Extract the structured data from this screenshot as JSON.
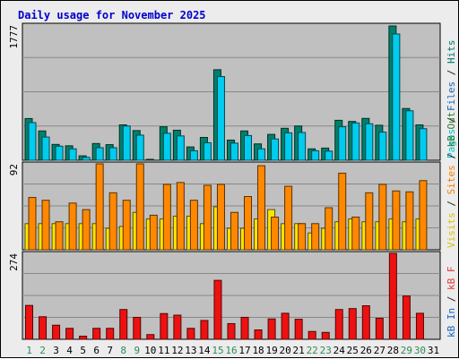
{
  "chart_data": {
    "type": "bar",
    "title": "Daily usage for November 2025",
    "categories": [
      "1",
      "2",
      "3",
      "4",
      "5",
      "6",
      "7",
      "8",
      "9",
      "10",
      "11",
      "12",
      "13",
      "14",
      "15",
      "16",
      "17",
      "18",
      "19",
      "20",
      "21",
      "22",
      "23",
      "24",
      "25",
      "26",
      "27",
      "28",
      "29",
      "30",
      "31"
    ],
    "weekend_days": [
      "1",
      "2",
      "8",
      "9",
      "15",
      "16",
      "22",
      "23",
      "29",
      "30"
    ],
    "panels": [
      {
        "id": "pages-files-hits",
        "max_label": "1777",
        "ymax": 1777,
        "side_labels": [
          {
            "text": "Pages",
            "color": "#00bcd4"
          },
          {
            "text": " / ",
            "color": "#222222"
          },
          {
            "text": "Files",
            "color": "#1565c0"
          },
          {
            "text": " / ",
            "color": "#222222"
          },
          {
            "text": "Hits",
            "color": "#00796b"
          }
        ],
        "series": [
          {
            "key": "hits",
            "color": "#00806a",
            "values": [
              548,
              385,
              208,
              190,
              58,
              220,
              205,
              465,
              390,
              8,
              440,
              395,
              175,
              300,
              1190,
              265,
              385,
              215,
              340,
              420,
              450,
              150,
              160,
              525,
              510,
              550,
              460,
              1765,
              680,
              465,
              0
            ]
          },
          {
            "key": "files",
            "color": "#00ccee",
            "values": [
              495,
              305,
              185,
              150,
              38,
              165,
              165,
              450,
              330,
              0,
              355,
              320,
              125,
              230,
              1100,
              225,
              325,
              150,
              280,
              360,
              365,
              125,
              120,
              440,
              490,
              480,
              370,
              1660,
              650,
              415,
              0
            ]
          }
        ]
      },
      {
        "id": "visits-sites-kb",
        "max_label": "92",
        "ymax": 92,
        "side_labels": [
          {
            "text": "Visits",
            "color": "#d9c400"
          },
          {
            "text": " / ",
            "color": "#222222"
          },
          {
            "text": "Sites",
            "color": "#f57c00"
          },
          {
            "text": " / ",
            "color": "#222222"
          },
          {
            "text": "kB Out",
            "color": "#2e7d32"
          }
        ],
        "series": [
          {
            "key": "visits",
            "color": "#ffe400",
            "values": [
              28,
              28,
              28,
              28,
              28,
              28,
              23,
              25,
              40,
              33,
              33,
              36,
              36,
              28,
              46,
              23,
              23,
              33,
              43,
              28,
              28,
              18,
              23,
              30,
              33,
              30,
              30,
              33,
              30,
              33,
              0
            ]
          },
          {
            "key": "sites",
            "color": "#ff8800",
            "values": [
              56,
              53,
              30,
              50,
              43,
              92,
              61,
              53,
              92,
              37,
              70,
              72,
              53,
              69,
              70,
              40,
              57,
              90,
              35,
              68,
              28,
              28,
              45,
              82,
              35,
              61,
              70,
              63,
              62,
              74,
              0
            ]
          }
        ]
      },
      {
        "id": "kbf",
        "max_label": "274",
        "ymax": 274,
        "side_labels": [
          {
            "text": "kB In",
            "color": "#1565c0"
          },
          {
            "text": " / ",
            "color": "#222222"
          },
          {
            "text": "kB F",
            "color": "#e53935"
          }
        ],
        "series": [
          {
            "key": "kbf",
            "color": "#ee1111",
            "values": [
              108,
              72,
              45,
              35,
              10,
              35,
              35,
              95,
              70,
              15,
              82,
              77,
              35,
              60,
              188,
              50,
              70,
              30,
              65,
              83,
              64,
              25,
              22,
              95,
              98,
              107,
              67,
              274,
              138,
              83,
              0
            ]
          }
        ]
      }
    ]
  }
}
